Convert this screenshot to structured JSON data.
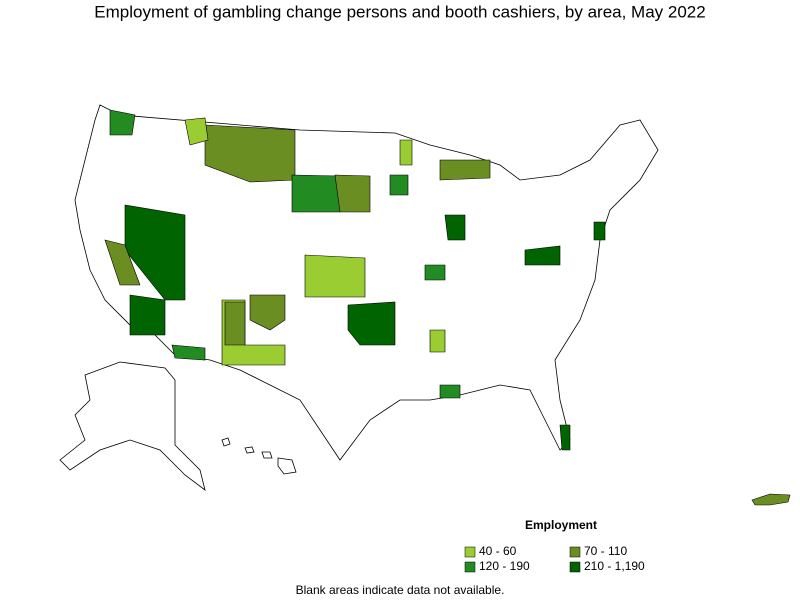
{
  "title": "Employment of gambling change persons and booth cashiers, by area, May 2022",
  "legend": {
    "title": "Employment",
    "items": [
      {
        "label": "40 - 60",
        "color": "#9acd32"
      },
      {
        "label": "70 - 110",
        "color": "#6b8e23"
      },
      {
        "label": "120 - 190",
        "color": "#228b22"
      },
      {
        "label": "210 - 1,190",
        "color": "#006400"
      }
    ]
  },
  "note": "Blank areas indicate data not available."
}
